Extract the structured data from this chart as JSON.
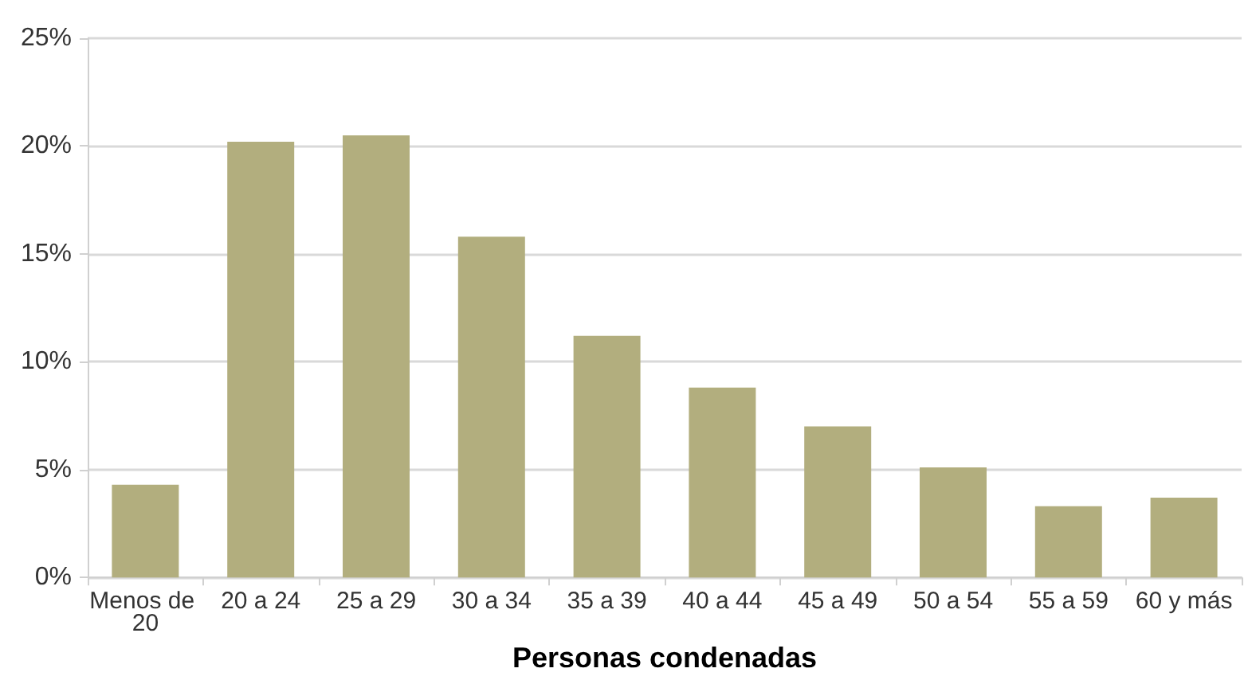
{
  "chart_data": {
    "type": "bar",
    "xlabel": "Personas condenadas",
    "categories": [
      "Menos de 20",
      "20 a 24",
      "25 a 29",
      "30 a 34",
      "35 a 39",
      "40 a 44",
      "45 a 49",
      "50 a 54",
      "55 a 59",
      "60 y más"
    ],
    "values": [
      4.3,
      20.2,
      20.5,
      15.8,
      11.2,
      8.8,
      7.0,
      5.1,
      3.3,
      3.7
    ],
    "color": "#b2ae7e",
    "ylim": [
      0,
      25
    ],
    "yticks": [
      {
        "value": 0,
        "label": "0%"
      },
      {
        "value": 5,
        "label": "5%"
      },
      {
        "value": 10,
        "label": "10%"
      },
      {
        "value": 15,
        "label": "15%"
      },
      {
        "value": 20,
        "label": "20%"
      },
      {
        "value": 25,
        "label": "25%"
      }
    ],
    "grid": "y"
  }
}
